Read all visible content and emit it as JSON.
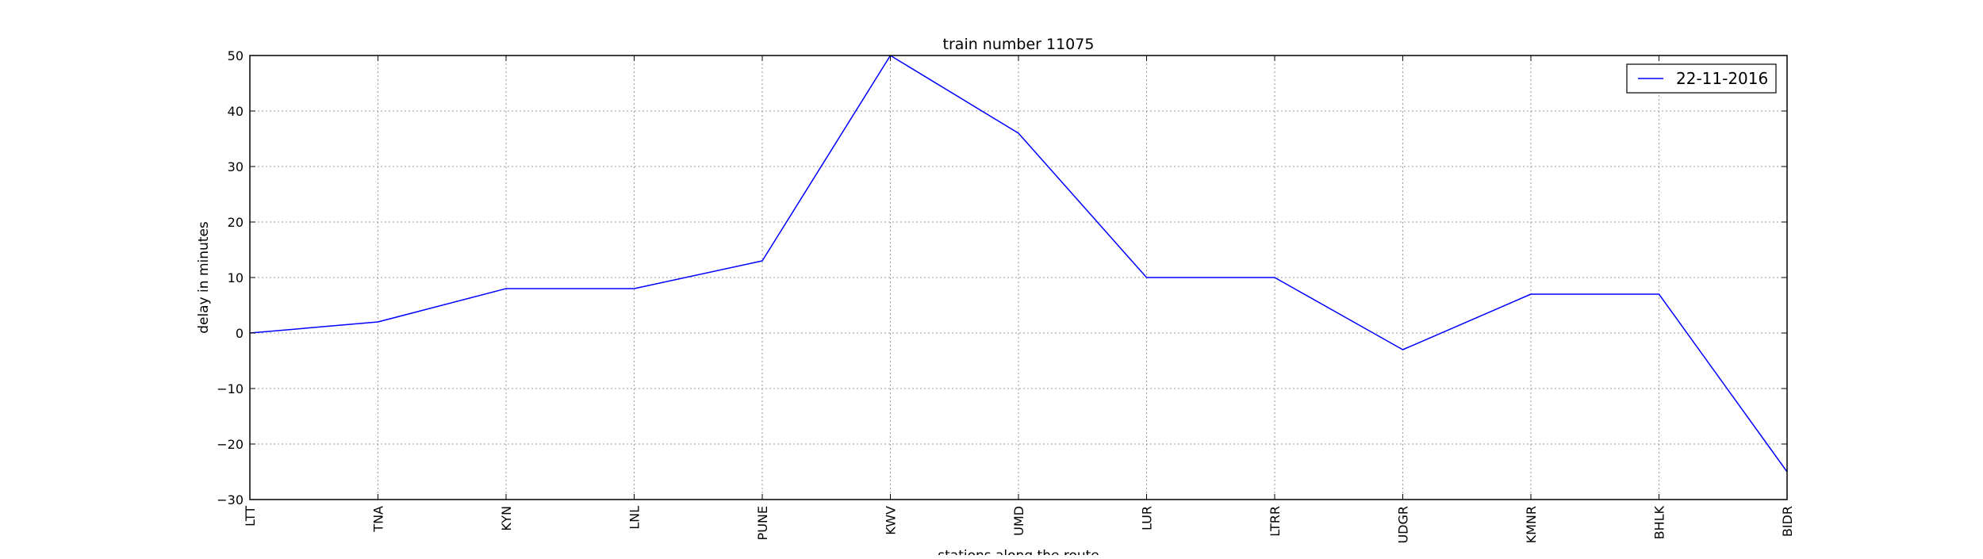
{
  "chart_data": {
    "type": "line",
    "title": "train number 11075",
    "xlabel": "stations along the route",
    "ylabel": "delay in minutes",
    "categories": [
      "LTT",
      "TNA",
      "KYN",
      "LNL",
      "PUNE",
      "KWV",
      "UMD",
      "LUR",
      "LTRR",
      "UDGR",
      "KMNR",
      "BHLK",
      "BIDR"
    ],
    "series": [
      {
        "name": "22-11-2016",
        "values": [
          0,
          2,
          8,
          8,
          13,
          50,
          36,
          10,
          10,
          -3,
          7,
          7,
          -25
        ],
        "color": "#0000ff"
      }
    ],
    "ylim": [
      -30,
      50
    ],
    "yticks": [
      50,
      40,
      30,
      20,
      10,
      0,
      -10,
      -20,
      -30
    ],
    "ytick_labels": [
      "50",
      "40",
      "30",
      "20",
      "10",
      "0",
      "−10",
      "−20",
      "−30"
    ],
    "grid": true,
    "legend_position": "top-right"
  }
}
